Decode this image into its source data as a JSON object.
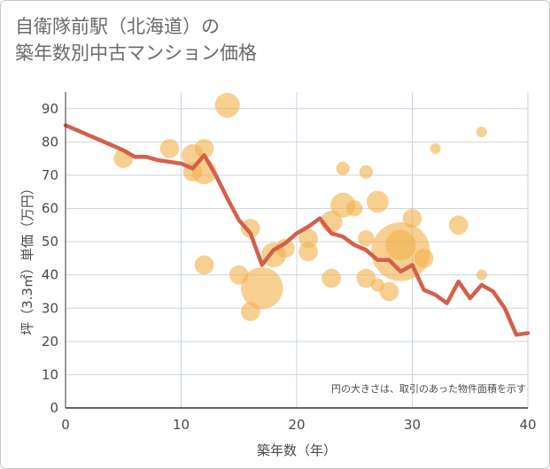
{
  "chart_data": {
    "type": "scatter",
    "title_line1": "自衛隊前駅（北海道）の",
    "title_line2": "築年数別中古マンション価格",
    "xlabel": "築年数（年）",
    "ylabel": "坪（3.3㎡）単価（万円）",
    "xlim": [
      0,
      40
    ],
    "ylim": [
      0,
      95
    ],
    "x_ticks": [
      0,
      10,
      20,
      30,
      40
    ],
    "y_ticks": [
      0,
      10,
      20,
      30,
      40,
      50,
      60,
      70,
      80,
      90
    ],
    "grid": true,
    "note": "円の大きさは、取引のあった物件面積を示す",
    "colors": {
      "line": "#d4604a",
      "bubble": "#f2b24e",
      "grid": "#c8d6e6",
      "axis": "#333333"
    },
    "line_series": {
      "x": [
        0,
        1,
        2,
        3,
        4,
        5,
        6,
        7,
        8,
        9,
        10,
        11,
        12,
        13,
        14,
        15,
        16,
        17,
        18,
        19,
        20,
        21,
        22,
        23,
        24,
        25,
        26,
        27,
        28,
        29,
        30,
        31,
        32,
        33,
        34,
        35,
        36,
        37,
        38,
        39,
        40
      ],
      "y": [
        85,
        83.5,
        82,
        80.5,
        79,
        77.5,
        75.5,
        75.5,
        74.5,
        74,
        73.5,
        72,
        76,
        70,
        63,
        56.5,
        52.5,
        43,
        47.5,
        49.5,
        52.5,
        54.5,
        57,
        52.5,
        51.5,
        49,
        47.5,
        44.5,
        44.5,
        41,
        43,
        35.5,
        34,
        31.5,
        38,
        33,
        37,
        35,
        30,
        22,
        22.5
      ]
    },
    "bubbles": [
      {
        "x": 5,
        "y": 75,
        "size": 3
      },
      {
        "x": 9,
        "y": 78,
        "size": 3
      },
      {
        "x": 11,
        "y": 76,
        "size": 3.5
      },
      {
        "x": 11,
        "y": 71,
        "size": 3
      },
      {
        "x": 12,
        "y": 78,
        "size": 3
      },
      {
        "x": 12,
        "y": 71,
        "size": 4
      },
      {
        "x": 12,
        "y": 43,
        "size": 3
      },
      {
        "x": 14,
        "y": 91,
        "size": 4
      },
      {
        "x": 15,
        "y": 40,
        "size": 3
      },
      {
        "x": 16,
        "y": 54,
        "size": 3
      },
      {
        "x": 16,
        "y": 29,
        "size": 3
      },
      {
        "x": 17,
        "y": 36,
        "size": 7
      },
      {
        "x": 18,
        "y": 46,
        "size": 4
      },
      {
        "x": 19,
        "y": 48,
        "size": 3
      },
      {
        "x": 21,
        "y": 51,
        "size": 3
      },
      {
        "x": 21,
        "y": 47,
        "size": 3
      },
      {
        "x": 23,
        "y": 56,
        "size": 3.5
      },
      {
        "x": 23,
        "y": 39,
        "size": 3
      },
      {
        "x": 24,
        "y": 72,
        "size": 2
      },
      {
        "x": 24,
        "y": 61,
        "size": 4
      },
      {
        "x": 25,
        "y": 60,
        "size": 2.5
      },
      {
        "x": 26,
        "y": 71,
        "size": 2
      },
      {
        "x": 26,
        "y": 51,
        "size": 2.5
      },
      {
        "x": 26,
        "y": 39,
        "size": 3
      },
      {
        "x": 27,
        "y": 62,
        "size": 3.5
      },
      {
        "x": 27,
        "y": 37,
        "size": 2
      },
      {
        "x": 28,
        "y": 35,
        "size": 3
      },
      {
        "x": 29,
        "y": 47,
        "size": 10
      },
      {
        "x": 29,
        "y": 49,
        "size": 5
      },
      {
        "x": 30,
        "y": 57,
        "size": 3
      },
      {
        "x": 31,
        "y": 45,
        "size": 3
      },
      {
        "x": 32,
        "y": 78,
        "size": 1.5
      },
      {
        "x": 34,
        "y": 55,
        "size": 3
      },
      {
        "x": 36,
        "y": 83,
        "size": 1.5
      },
      {
        "x": 36,
        "y": 40,
        "size": 1.5
      }
    ]
  }
}
